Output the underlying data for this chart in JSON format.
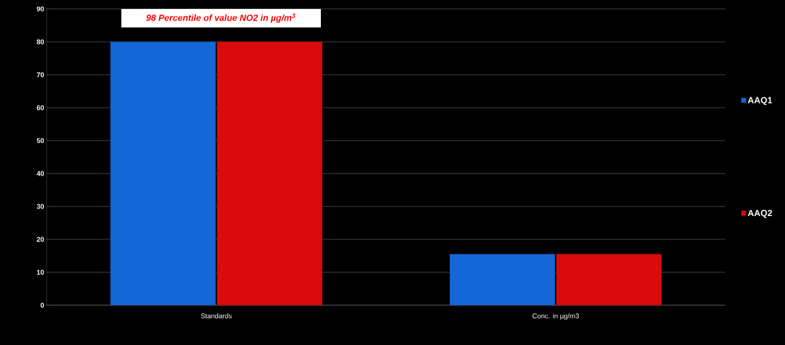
{
  "chart_data": {
    "type": "bar",
    "title": "98 Percentile of value NO2 in µg/m$^{3}$",
    "categories": [
      "Standards",
      "Conc. in µg/m3"
    ],
    "series": [
      {
        "name": "AAQ1",
        "color": "#1566d6",
        "values": [
          80,
          15.5
        ]
      },
      {
        "name": "AAQ2",
        "color": "#d90b0b",
        "values": [
          80,
          15.5
        ]
      }
    ],
    "ylim": [
      0,
      90
    ],
    "yticks": [
      0,
      10,
      20,
      30,
      40,
      50,
      60,
      70,
      80,
      90
    ],
    "grid": "y",
    "legend": "right"
  }
}
